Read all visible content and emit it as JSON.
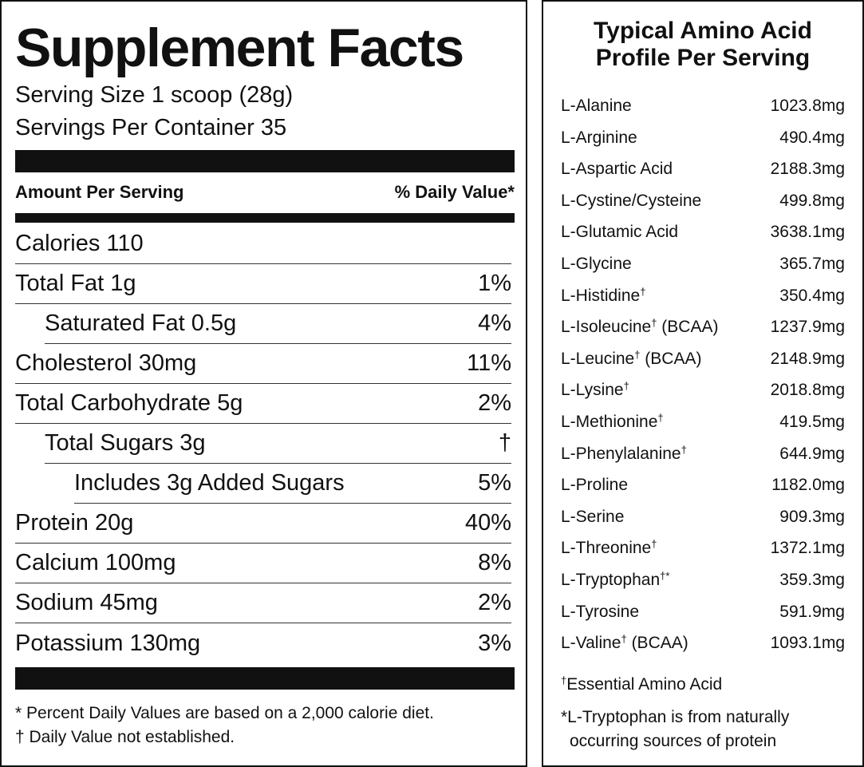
{
  "supplement_facts": {
    "title": "Supplement Facts",
    "serving_size": "Serving Size 1 scoop (28g)",
    "servings_per_container": "Servings Per Container 35",
    "amount_per_serving": "Amount Per Serving",
    "daily_value_header": "% Daily Value*",
    "rows": [
      {
        "label": "Calories 110",
        "dv": "",
        "indent": 0
      },
      {
        "label": "Total Fat 1g",
        "dv": "1%",
        "indent": 0
      },
      {
        "label": "Saturated Fat 0.5g",
        "dv": "4%",
        "indent": 1
      },
      {
        "label": "Cholesterol 30mg",
        "dv": "11%",
        "indent": 0
      },
      {
        "label": "Total Carbohydrate 5g",
        "dv": "2%",
        "indent": 0
      },
      {
        "label": "Total Sugars 3g",
        "dv": "†",
        "indent": 1
      },
      {
        "label": "Includes 3g Added Sugars",
        "dv": "5%",
        "indent": 2
      },
      {
        "label": "Protein 20g",
        "dv": "40%",
        "indent": 0
      },
      {
        "label": "Calcium 100mg",
        "dv": "8%",
        "indent": 0
      },
      {
        "label": "Sodium 45mg",
        "dv": "2%",
        "indent": 0
      },
      {
        "label": "Potassium 130mg",
        "dv": "3%",
        "indent": 0
      }
    ],
    "footnote_percent": "* Percent Daily Values are based on a 2,000 calorie diet.",
    "footnote_dagger": "† Daily Value not established."
  },
  "amino_profile": {
    "title_line1": "Typical Amino Acid",
    "title_line2": "Profile Per Serving",
    "rows": [
      {
        "name": "L-Alanine",
        "mark": "",
        "suffix": "",
        "amount": "1023.8mg"
      },
      {
        "name": "L-Arginine",
        "mark": "",
        "suffix": "",
        "amount": "490.4mg"
      },
      {
        "name": "L-Aspartic Acid",
        "mark": "",
        "suffix": "",
        "amount": "2188.3mg"
      },
      {
        "name": "L-Cystine/Cysteine",
        "mark": "",
        "suffix": "",
        "amount": "499.8mg"
      },
      {
        "name": "L-Glutamic Acid",
        "mark": "",
        "suffix": "",
        "amount": "3638.1mg"
      },
      {
        "name": "L-Glycine",
        "mark": "",
        "suffix": "",
        "amount": "365.7mg"
      },
      {
        "name": "L-Histidine",
        "mark": "†",
        "suffix": "",
        "amount": "350.4mg"
      },
      {
        "name": "L-Isoleucine",
        "mark": "†",
        "suffix": " (BCAA)",
        "amount": "1237.9mg"
      },
      {
        "name": "L-Leucine",
        "mark": "†",
        "suffix": " (BCAA)",
        "amount": "2148.9mg"
      },
      {
        "name": "L-Lysine",
        "mark": "†",
        "suffix": "",
        "amount": "2018.8mg"
      },
      {
        "name": "L-Methionine",
        "mark": "†",
        "suffix": "",
        "amount": "419.5mg"
      },
      {
        "name": "L-Phenylalanine",
        "mark": "†",
        "suffix": "",
        "amount": "644.9mg"
      },
      {
        "name": "L-Proline",
        "mark": "",
        "suffix": "",
        "amount": "1182.0mg"
      },
      {
        "name": "L-Serine",
        "mark": "",
        "suffix": "",
        "amount": "909.3mg"
      },
      {
        "name": "L-Threonine",
        "mark": "†",
        "suffix": "",
        "amount": "1372.1mg"
      },
      {
        "name": "L-Tryptophan",
        "mark": "†*",
        "suffix": "",
        "amount": "359.3mg"
      },
      {
        "name": "L-Tyrosine",
        "mark": "",
        "suffix": "",
        "amount": "591.9mg"
      },
      {
        "name": "L-Valine",
        "mark": "†",
        "suffix": " (BCAA)",
        "amount": "1093.1mg"
      }
    ],
    "note_essential_mark": "†",
    "note_essential_text": "Essential Amino Acid",
    "note_tryptophan_line1": "*L-Tryptophan is from naturally",
    "note_tryptophan_line2": "occurring sources of protein"
  }
}
